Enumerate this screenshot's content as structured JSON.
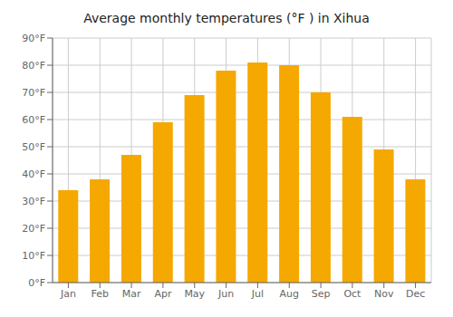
{
  "chart_data": {
    "type": "bar",
    "title": "Average monthly temperatures (°F ) in Xihua",
    "categories": [
      "Jan",
      "Feb",
      "Mar",
      "Apr",
      "May",
      "Jun",
      "Jul",
      "Aug",
      "Sep",
      "Oct",
      "Nov",
      "Dec"
    ],
    "values": [
      34,
      38,
      47,
      59,
      69,
      78,
      81,
      80,
      70,
      61,
      49,
      38
    ],
    "color": "#F5A800",
    "ylim": [
      0,
      90
    ],
    "yticks": [
      {
        "value": 0,
        "label": "0°F"
      },
      {
        "value": 10,
        "label": "10°F"
      },
      {
        "value": 20,
        "label": "20°F"
      },
      {
        "value": 30,
        "label": "30°F"
      },
      {
        "value": 40,
        "label": "40°F"
      },
      {
        "value": 50,
        "label": "50°F"
      },
      {
        "value": 60,
        "label": "60°F"
      },
      {
        "value": 70,
        "label": "70°F"
      },
      {
        "value": 80,
        "label": "80°F"
      },
      {
        "value": 90,
        "label": "90°F"
      }
    ],
    "grid": true
  }
}
